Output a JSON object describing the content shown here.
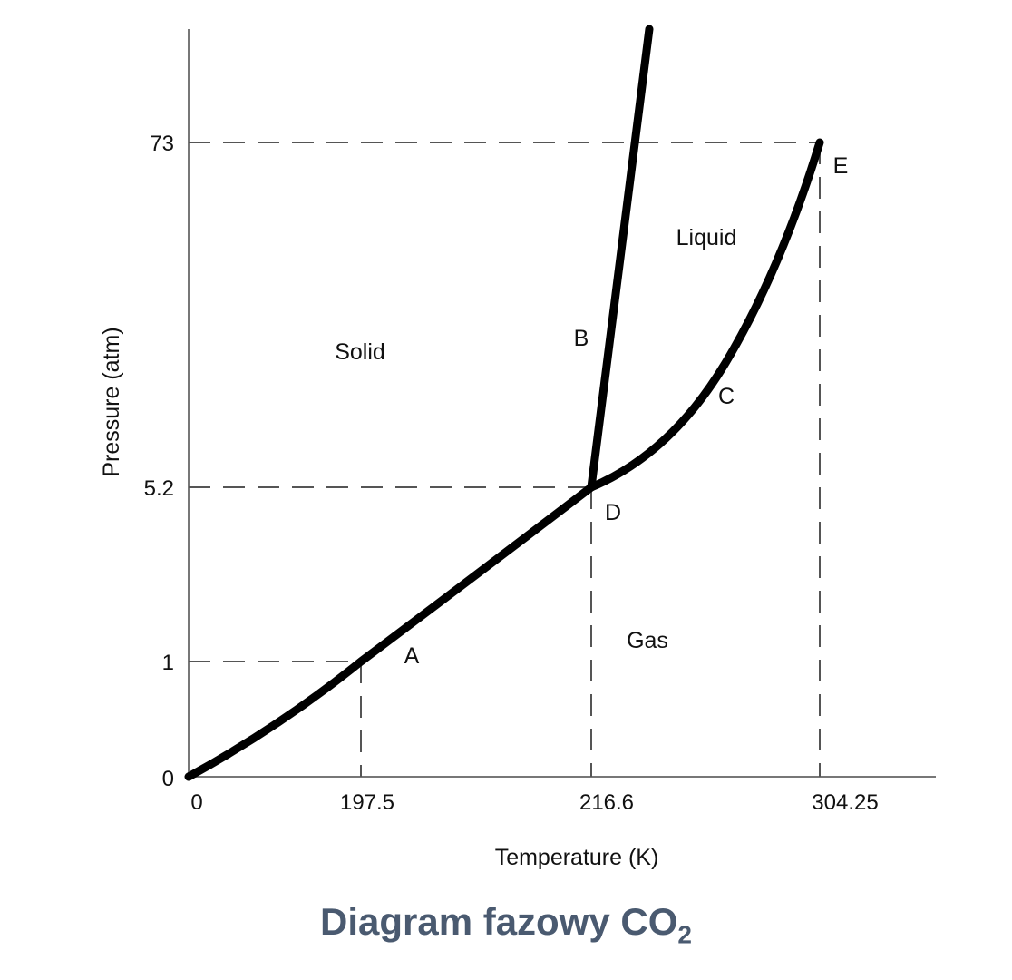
{
  "diagram": {
    "axes": {
      "x_label": "Temperature (K)",
      "y_label": "Pressure (atm)",
      "x_ticks": [
        "0",
        "197.5",
        "216.6",
        "304.25"
      ],
      "y_ticks": [
        "0",
        "1",
        "5.2",
        "73"
      ]
    },
    "regions": {
      "solid": "Solid",
      "liquid": "Liquid",
      "gas": "Gas"
    },
    "points": {
      "a": "A",
      "b": "B",
      "c": "C",
      "d": "D",
      "e": "E"
    },
    "colors": {
      "caption": "#4a5a70",
      "line": "#000000",
      "guide": "#555555"
    }
  },
  "caption": {
    "main": "Diagram fazowy CO",
    "sub": "2"
  }
}
